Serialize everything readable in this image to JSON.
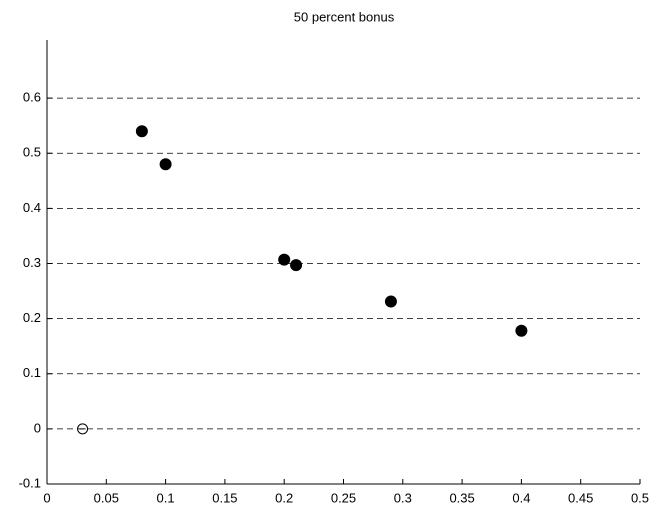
{
  "chart_data": {
    "type": "scatter",
    "title": "50 percent bonus",
    "series": [
      {
        "color": "#000000",
        "filled": true,
        "x": [
          0.08,
          0.1,
          0.2,
          0.21,
          0.29,
          0.4
        ],
        "values": [
          0.54,
          0.48,
          0.307,
          0.297,
          0.231,
          0.178
        ]
      },
      {
        "color": "#000000",
        "filled": false,
        "x": [
          0.03
        ],
        "values": [
          0
        ]
      }
    ],
    "xlim": [
      0,
      0.5
    ],
    "xticks": [
      0,
      0.05,
      0.1,
      0.15,
      0.2,
      0.25,
      0.3,
      0.35,
      0.4,
      0.45,
      0.5
    ],
    "ylim": [
      -0.1,
      0.7
    ],
    "yticks": [
      -0.1,
      0,
      0.1,
      0.2,
      0.3,
      0.4,
      0.5,
      0.6
    ],
    "grid": "y"
  }
}
